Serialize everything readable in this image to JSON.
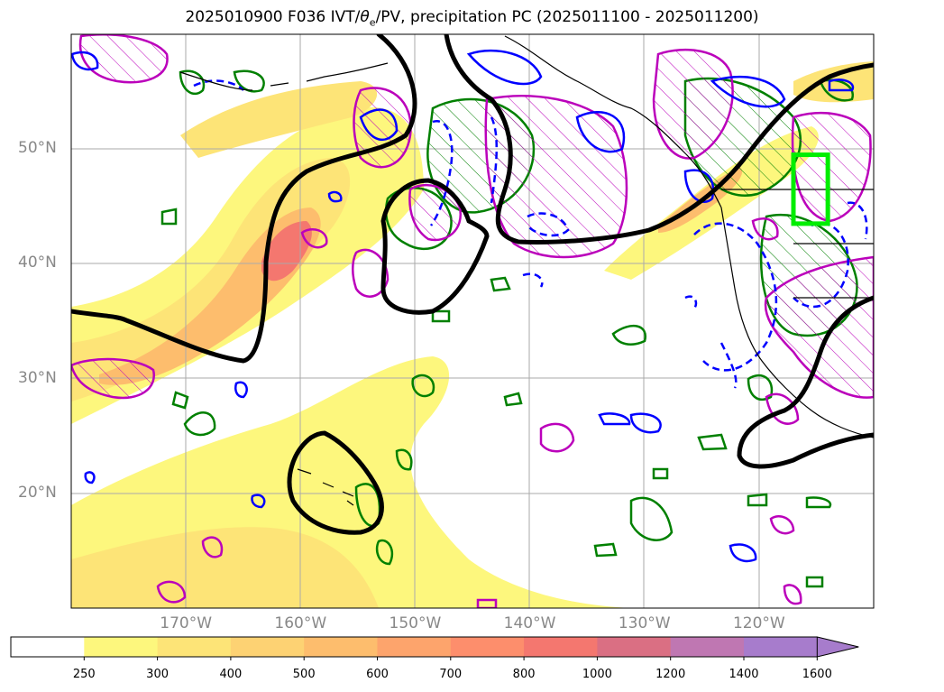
{
  "title": {
    "prefix": "2025010900 F036 IVT/",
    "theta": "θ",
    "theta_sub": "e",
    "suffix": "/PV, precipitation PC (2025011100 - 2025011200)"
  },
  "map": {
    "lon_range": [
      -180,
      -110
    ],
    "lat_range": [
      10,
      60
    ],
    "lat_labels": [
      {
        "lat": 50,
        "text": "50°N"
      },
      {
        "lat": 40,
        "text": "40°N"
      },
      {
        "lat": 30,
        "text": "30°N"
      },
      {
        "lat": 20,
        "text": "20°N"
      }
    ],
    "lon_labels": [
      {
        "lon": -170,
        "text": "170°W"
      },
      {
        "lon": -160,
        "text": "160°W"
      },
      {
        "lon": -150,
        "text": "150°W"
      },
      {
        "lon": -140,
        "text": "140°W"
      },
      {
        "lon": -130,
        "text": "130°W"
      },
      {
        "lon": -120,
        "text": "120°W"
      }
    ],
    "box_color": "#00ee00",
    "box_bounds": {
      "lon": [
        -117,
        -114
      ],
      "lat": [
        43.5,
        49.5
      ]
    }
  },
  "colorbar": {
    "ticks": [
      "250",
      "300",
      "400",
      "500",
      "600",
      "700",
      "800",
      "1000",
      "1200",
      "1400",
      "1600"
    ],
    "colors": [
      "#ffffff",
      "#fdf77d",
      "#fde477",
      "#fdd273",
      "#fdbd6d",
      "#fda46c",
      "#fd8e6c",
      "#f4776f",
      "#da6f83",
      "#bf77b2",
      "#a77ccc"
    ],
    "extend": "max"
  },
  "legend_colors": {
    "ivt_contour": "#000000",
    "pv_positive": "#0000ff",
    "pv_hatched": "#bb00bb",
    "theta_e": "#008000"
  }
}
